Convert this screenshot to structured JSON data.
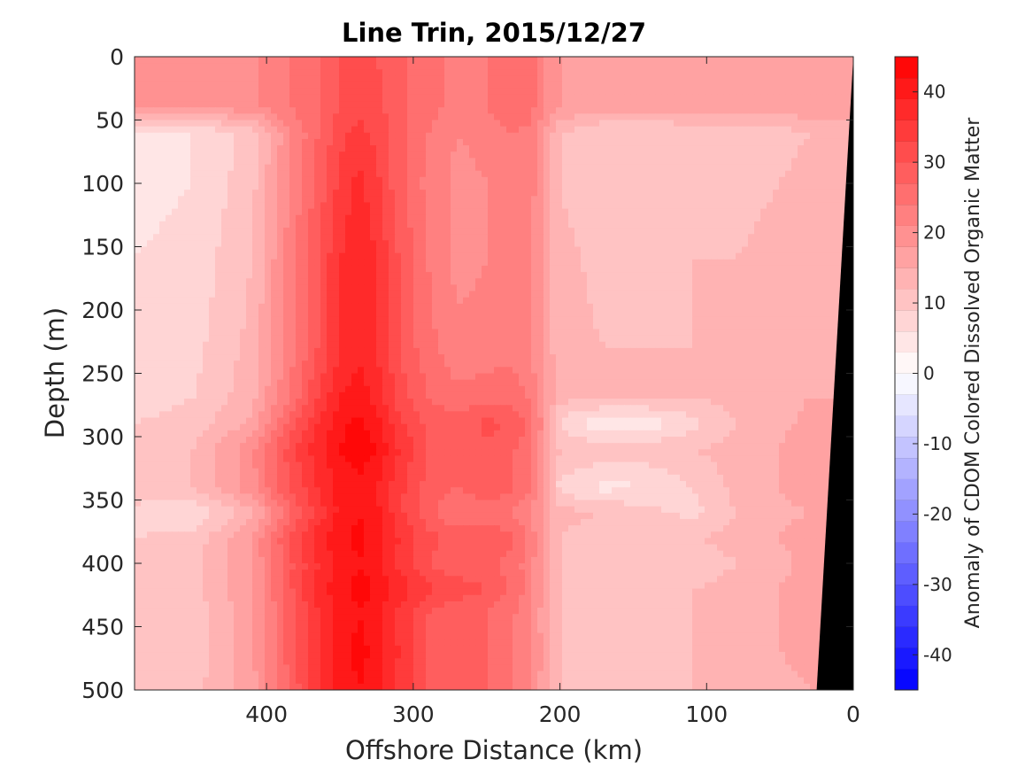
{
  "chart_data": {
    "type": "heatmap",
    "title": "Line Trin, 2015/12/27",
    "xlabel": "Offshore Distance (km)",
    "ylabel": "Depth (m)",
    "xlim": [
      490,
      0
    ],
    "ylim": [
      0,
      500
    ],
    "x_reversed": true,
    "y_reversed": true,
    "x_ticks": [
      400,
      300,
      200,
      100,
      0
    ],
    "x_tick_labels": [
      "400",
      "300",
      "200",
      "100",
      "0"
    ],
    "y_ticks": [
      0,
      50,
      100,
      150,
      200,
      250,
      300,
      350,
      400,
      450,
      500
    ],
    "y_tick_labels": [
      "0",
      "50",
      "100",
      "150",
      "200",
      "250",
      "300",
      "350",
      "400",
      "450",
      "500"
    ],
    "colorbar": {
      "label": "Anomaly of CDOM Colored Dissolved Organic Matter",
      "range": [
        -45,
        45
      ],
      "contour_interval": 3,
      "ticks": [
        40,
        30,
        20,
        10,
        0,
        -10,
        -20,
        -30,
        -40
      ],
      "tick_labels": [
        "40",
        "30",
        "20",
        "10",
        "0",
        "-10",
        "-20",
        "-30",
        "-40"
      ],
      "low_color": "#0000ff",
      "mid_color": "#ffffff",
      "high_color": "#ff0000"
    },
    "section_x_km": [
      490,
      450,
      410,
      385,
      365,
      350,
      337,
      325,
      310,
      290,
      270,
      250,
      235,
      222,
      210,
      200,
      170,
      140,
      110,
      80,
      50,
      30,
      20
    ],
    "section_depth_m": [
      0,
      40,
      60,
      100,
      160,
      230,
      270,
      290,
      310,
      340,
      360,
      380,
      400,
      420,
      440,
      470,
      500
    ],
    "values": [
      [
        18,
        18,
        20,
        24,
        27,
        30,
        31,
        30,
        28,
        25,
        23,
        24,
        27,
        26,
        21,
        18,
        17,
        17,
        17,
        17,
        18,
        18,
        18
      ],
      [
        18,
        18,
        20,
        24,
        27,
        30,
        32,
        31,
        28,
        25,
        23,
        24,
        27,
        26,
        21,
        18,
        16,
        16,
        16,
        16,
        17,
        17,
        17
      ],
      [
        5,
        6,
        10,
        20,
        27,
        32,
        34,
        32,
        28,
        24,
        21,
        22,
        24,
        23,
        18,
        12,
        9,
        9,
        10,
        10,
        11,
        12,
        12
      ],
      [
        5,
        6,
        11,
        21,
        28,
        34,
        37,
        34,
        28,
        23,
        20,
        21,
        24,
        23,
        18,
        12,
        9,
        9,
        11,
        11,
        12,
        13,
        13
      ],
      [
        6,
        7,
        12,
        22,
        30,
        36,
        38,
        36,
        30,
        24,
        20,
        21,
        23,
        22,
        17,
        13,
        11,
        11,
        12,
        12,
        13,
        14,
        14
      ],
      [
        7,
        8,
        13,
        22,
        30,
        36,
        38,
        36,
        30,
        25,
        22,
        22,
        23,
        22,
        17,
        13,
        12,
        12,
        12,
        12,
        13,
        14,
        14
      ],
      [
        8,
        9,
        14,
        24,
        33,
        39,
        41,
        38,
        32,
        27,
        25,
        26,
        26,
        24,
        18,
        13,
        12,
        12,
        12,
        13,
        14,
        15,
        15
      ],
      [
        9,
        10,
        16,
        28,
        36,
        41,
        43,
        40,
        34,
        29,
        28,
        31,
        30,
        27,
        19,
        8,
        3,
        4,
        8,
        12,
        14,
        16,
        16
      ],
      [
        10,
        12,
        20,
        31,
        38,
        42,
        44,
        42,
        36,
        30,
        28,
        29,
        28,
        25,
        18,
        12,
        11,
        11,
        12,
        13,
        15,
        18,
        18
      ],
      [
        11,
        12,
        20,
        30,
        36,
        40,
        41,
        39,
        34,
        29,
        27,
        29,
        28,
        25,
        18,
        8,
        5,
        6,
        9,
        13,
        15,
        17,
        17
      ],
      [
        8,
        6,
        14,
        26,
        34,
        40,
        42,
        40,
        34,
        28,
        24,
        25,
        24,
        22,
        17,
        13,
        12,
        10,
        8,
        12,
        14,
        15,
        15
      ],
      [
        9,
        10,
        18,
        30,
        38,
        41,
        43,
        41,
        36,
        31,
        29,
        30,
        28,
        24,
        17,
        12,
        10,
        10,
        12,
        13,
        15,
        17,
        17
      ],
      [
        10,
        11,
        18,
        29,
        36,
        40,
        42,
        40,
        35,
        30,
        27,
        28,
        26,
        23,
        17,
        12,
        11,
        11,
        10,
        12,
        14,
        16,
        16
      ],
      [
        10,
        11,
        18,
        29,
        37,
        41,
        43,
        42,
        38,
        34,
        32,
        30,
        27,
        23,
        17,
        12,
        11,
        11,
        12,
        13,
        15,
        17,
        17
      ],
      [
        9,
        10,
        17,
        28,
        36,
        40,
        42,
        40,
        35,
        30,
        27,
        27,
        25,
        22,
        16,
        12,
        11,
        11,
        12,
        13,
        15,
        17,
        17
      ],
      [
        9,
        10,
        17,
        28,
        36,
        41,
        43,
        41,
        36,
        30,
        27,
        27,
        25,
        22,
        17,
        12,
        11,
        11,
        12,
        13,
        15,
        16,
        16
      ],
      [
        10,
        11,
        17,
        27,
        35,
        40,
        42,
        40,
        35,
        30,
        27,
        27,
        25,
        22,
        16,
        12,
        11,
        11,
        12,
        13,
        14,
        15,
        15
      ]
    ],
    "land_mask": {
      "color": "#000000",
      "coast_top_km": 0,
      "coast_bottom_km": 25
    }
  }
}
